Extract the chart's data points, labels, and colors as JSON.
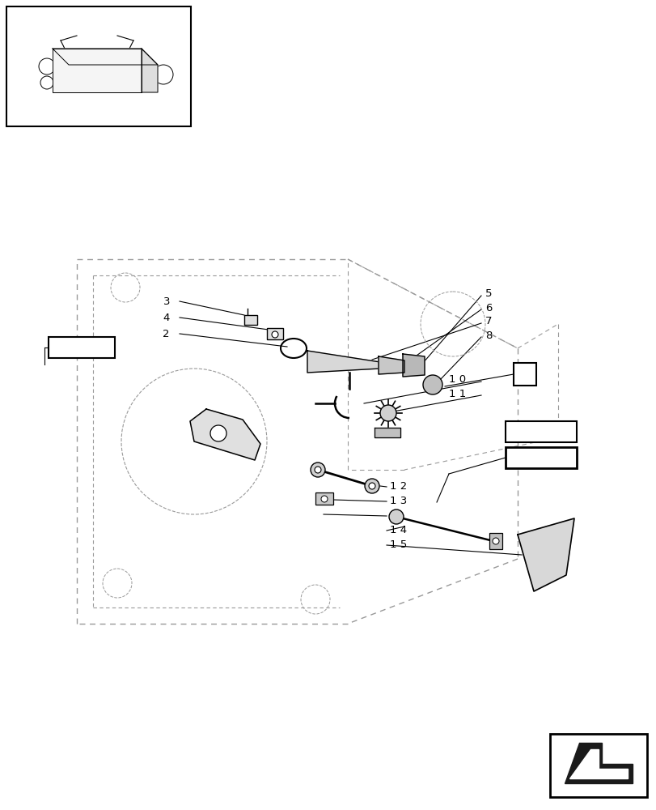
{
  "bg_color": "#ffffff",
  "line_color": "#000000",
  "dash_color": "#999999",
  "fig_w": 8.12,
  "fig_h": 10.0,
  "dpi": 100
}
